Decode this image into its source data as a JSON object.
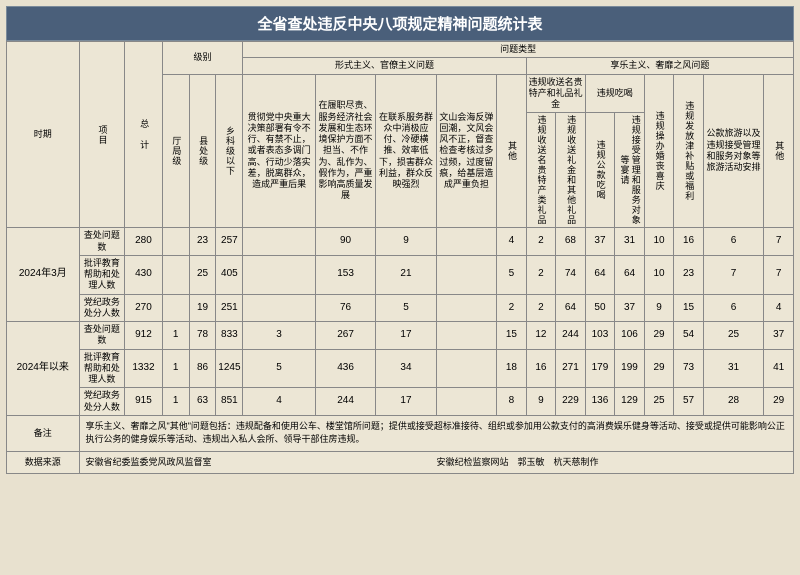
{
  "title": "全省查处违反中央八项规定精神问题统计表",
  "colHeaders": {
    "period": "时期",
    "item": "项目",
    "total": "总 计",
    "levelGroup": "级别",
    "levels": [
      "厅局级",
      "县处级",
      "乡科级以下"
    ],
    "problemGroup": "问题类型",
    "catA": "形式主义、官僚主义问题",
    "catB": "享乐主义、奢靡之风问题",
    "a1": "贯彻党中央重大决策部署有令不行、有禁不止，或者表态多调门高、行动少落实差，脱离群众，造成严重后果",
    "a2": "在履职尽责、服务经济社会发展和生态环境保护方面不担当、不作为、乱作为、假作为，严重影响高质量发展",
    "a3": "在联系服务群众中消极应付、冷硬横推、效率低下，损害群众利益，群众反映强烈",
    "a4": "文山会海反弹回潮，文风会风不正，督查检查考核过多过频，过度留痕，给基层造成严重负担",
    "a5": "其他",
    "b1group": "违规收送名贵特产和礼品礼金",
    "b1a": "违规收送名贵特产类礼品",
    "b1b": "违规收送礼金和其他礼品",
    "b2group": "违规吃喝",
    "b2a": "违规公款吃喝",
    "b2b": "违规接受管理和服务对象等宴请",
    "b3": "违规操办婚丧喜庆",
    "b4": "违规发放津补贴或福利",
    "b5": "公款旅游以及违规接受管理和服务对象等旅游活动安排",
    "b6": "其他"
  },
  "periods": [
    {
      "label": "2024年3月",
      "rows": [
        {
          "item": "查处问题数",
          "cells": [
            "280",
            "",
            "23",
            "257",
            "",
            "90",
            "9",
            "",
            "4",
            "2",
            "68",
            "37",
            "31",
            "10",
            "16",
            "6",
            "7"
          ]
        },
        {
          "item": "批评教育帮助和处理人数",
          "cells": [
            "430",
            "",
            "25",
            "405",
            "",
            "153",
            "21",
            "",
            "5",
            "2",
            "74",
            "64",
            "64",
            "10",
            "23",
            "7",
            "7"
          ]
        },
        {
          "item": "党纪政务处分人数",
          "cells": [
            "270",
            "",
            "19",
            "251",
            "",
            "76",
            "5",
            "",
            "2",
            "2",
            "64",
            "50",
            "37",
            "9",
            "15",
            "6",
            "4"
          ]
        }
      ]
    },
    {
      "label": "2024年以来",
      "rows": [
        {
          "item": "查处问题数",
          "cells": [
            "912",
            "1",
            "78",
            "833",
            "3",
            "267",
            "17",
            "",
            "15",
            "12",
            "244",
            "103",
            "106",
            "29",
            "54",
            "25",
            "37"
          ]
        },
        {
          "item": "批评教育帮助和处理人数",
          "cells": [
            "1332",
            "1",
            "86",
            "1245",
            "5",
            "436",
            "34",
            "",
            "18",
            "16",
            "271",
            "179",
            "199",
            "29",
            "73",
            "31",
            "41"
          ]
        },
        {
          "item": "党纪政务处分人数",
          "cells": [
            "915",
            "1",
            "63",
            "851",
            "4",
            "244",
            "17",
            "",
            "8",
            "9",
            "229",
            "136",
            "129",
            "25",
            "57",
            "28",
            "29"
          ]
        }
      ]
    }
  ],
  "notes": {
    "label": "备注",
    "text": "享乐主义、奢靡之风\"其他\"问题包括：违规配备和使用公车、楼堂馆所问题；提供或接受超标准接待、组织或参加用公款支付的高消费娱乐健身等活动、接受或提供可能影响公正执行公务的健身娱乐等活动、违规出入私人会所、领导干部住房违规。"
  },
  "source": {
    "label": "数据来源",
    "text": "安徽省纪委监委党风政风监督室　　　　　　　　　　　　　　　　　　　　　　　　　安徽纪检监察网站　郭玉敏　杭天慈制作"
  },
  "style": {
    "bg": "#e8e1cf",
    "cellBg": "#ece6d5",
    "titleBg": "#4a5f7a",
    "border": "#888",
    "fontSizeHeader": 9,
    "fontSizeData": 10,
    "fontSizeTitle": 15
  }
}
